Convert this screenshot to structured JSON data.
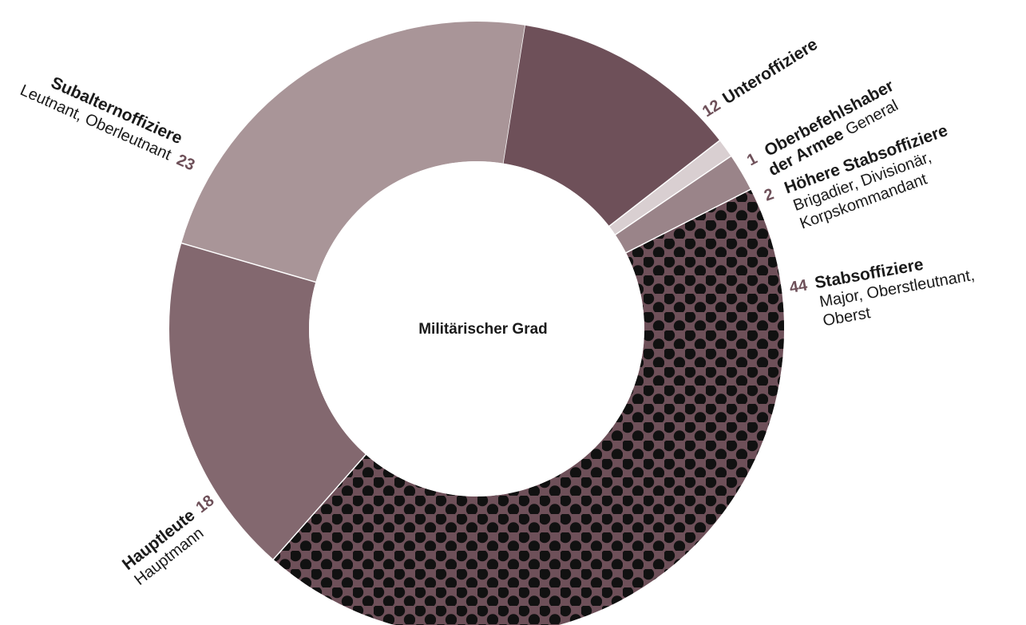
{
  "chart_data": {
    "type": "pie",
    "title": "Militärischer Grad",
    "slices": [
      {
        "name": "Unteroffiziere",
        "sub": "",
        "value": 12,
        "color": "#6e5059",
        "pattern": "none"
      },
      {
        "name": "Oberbefehlshaber der Armee",
        "name_lines": [
          "Oberbefehlshaber",
          "der Armee"
        ],
        "sub": "General",
        "value": 1,
        "color": "#d9cfd1",
        "pattern": "none"
      },
      {
        "name": "Höhere Stabsoffiziere",
        "sub": "Brigadier, Divisionär, Korpskommandant",
        "sub_lines": [
          "Brigadier, Divisionär,",
          "Korpskommandant"
        ],
        "value": 2,
        "color": "#9a8489",
        "pattern": "none"
      },
      {
        "name": "Stabsoffiziere",
        "sub": "Major, Oberstleutnant, Oberst",
        "sub_lines": [
          "Major, Oberstleutnant,",
          "Oberst"
        ],
        "value": 44,
        "color": "#6e5059",
        "pattern": "dots"
      },
      {
        "name": "Hauptleute",
        "sub": "Hauptmann",
        "value": 18,
        "color": "#83686f",
        "pattern": "none"
      },
      {
        "name": "Subalternoffiziere",
        "sub": "Leutnant, Oberleutnant",
        "value": 23,
        "color": "#a99598",
        "pattern": "none"
      }
    ]
  }
}
